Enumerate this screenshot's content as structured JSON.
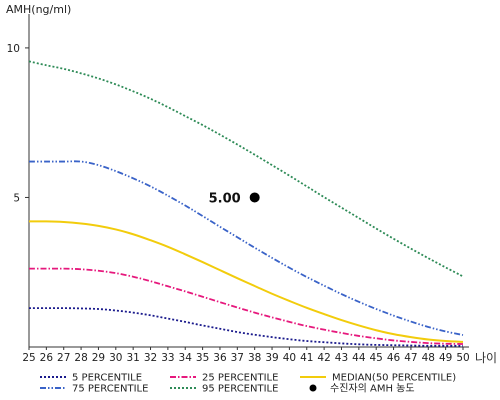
{
  "chart_data": {
    "type": "line",
    "ylabel": "AMH(ng/ml)",
    "xlabel": "나이",
    "xlim": [
      25,
      50
    ],
    "ylim": [
      0,
      11
    ],
    "x_ticks": [
      25,
      26,
      27,
      28,
      29,
      30,
      31,
      32,
      33,
      34,
      35,
      36,
      37,
      38,
      39,
      40,
      41,
      42,
      43,
      44,
      45,
      46,
      47,
      48,
      49,
      50
    ],
    "y_ticks": [
      5,
      10
    ],
    "grid": false,
    "legend_position": "bottom",
    "x": [
      25,
      26,
      27,
      28,
      29,
      30,
      31,
      32,
      33,
      34,
      35,
      36,
      37,
      38,
      39,
      40,
      41,
      42,
      43,
      44,
      45,
      46,
      47,
      48,
      49,
      50
    ],
    "series": [
      {
        "name": "5 PERCENTILE",
        "color": "#1a1a8c",
        "dash": "dotted",
        "values": [
          1.3,
          1.3,
          1.3,
          1.29,
          1.27,
          1.22,
          1.15,
          1.06,
          0.95,
          0.84,
          0.72,
          0.61,
          0.5,
          0.41,
          0.33,
          0.26,
          0.2,
          0.16,
          0.12,
          0.09,
          0.07,
          0.06,
          0.05,
          0.04,
          0.04,
          0.04
        ]
      },
      {
        "name": "25 PERCENTILE",
        "color": "#e6197d",
        "dash": "dashdot",
        "values": [
          2.62,
          2.62,
          2.62,
          2.6,
          2.55,
          2.47,
          2.35,
          2.2,
          2.03,
          1.86,
          1.68,
          1.5,
          1.32,
          1.15,
          0.99,
          0.84,
          0.7,
          0.58,
          0.47,
          0.37,
          0.29,
          0.22,
          0.17,
          0.13,
          0.11,
          0.1
        ]
      },
      {
        "name": "MEDIAN(50 PERCENTILE)",
        "color": "#f2cc0c",
        "dash": "solid",
        "values": [
          4.2,
          4.2,
          4.18,
          4.13,
          4.05,
          3.93,
          3.77,
          3.57,
          3.35,
          3.1,
          2.84,
          2.57,
          2.3,
          2.04,
          1.78,
          1.54,
          1.31,
          1.1,
          0.9,
          0.72,
          0.56,
          0.43,
          0.33,
          0.25,
          0.2,
          0.17
        ]
      },
      {
        "name": "75 PERCENTILE",
        "color": "#3a63c8",
        "dash": "dashdotdot",
        "values": [
          6.2,
          6.2,
          6.2,
          6.2,
          6.08,
          5.88,
          5.64,
          5.37,
          5.06,
          4.73,
          4.38,
          4.02,
          3.67,
          3.32,
          2.98,
          2.65,
          2.34,
          2.05,
          1.77,
          1.51,
          1.27,
          1.05,
          0.85,
          0.67,
          0.52,
          0.4
        ]
      },
      {
        "name": "95 PERCENTILE",
        "color": "#2e8b57",
        "dash": "dotted",
        "values": [
          9.55,
          9.42,
          9.3,
          9.15,
          8.98,
          8.78,
          8.55,
          8.3,
          8.02,
          7.72,
          7.42,
          7.1,
          6.77,
          6.43,
          6.08,
          5.73,
          5.37,
          5.01,
          4.66,
          4.31,
          3.96,
          3.62,
          3.29,
          2.97,
          2.66,
          2.36
        ]
      }
    ],
    "patient_point": {
      "name": "수진자의 AMH 농도",
      "x": 38,
      "y": 5.0,
      "label": "5.00",
      "color": "#000000"
    }
  }
}
